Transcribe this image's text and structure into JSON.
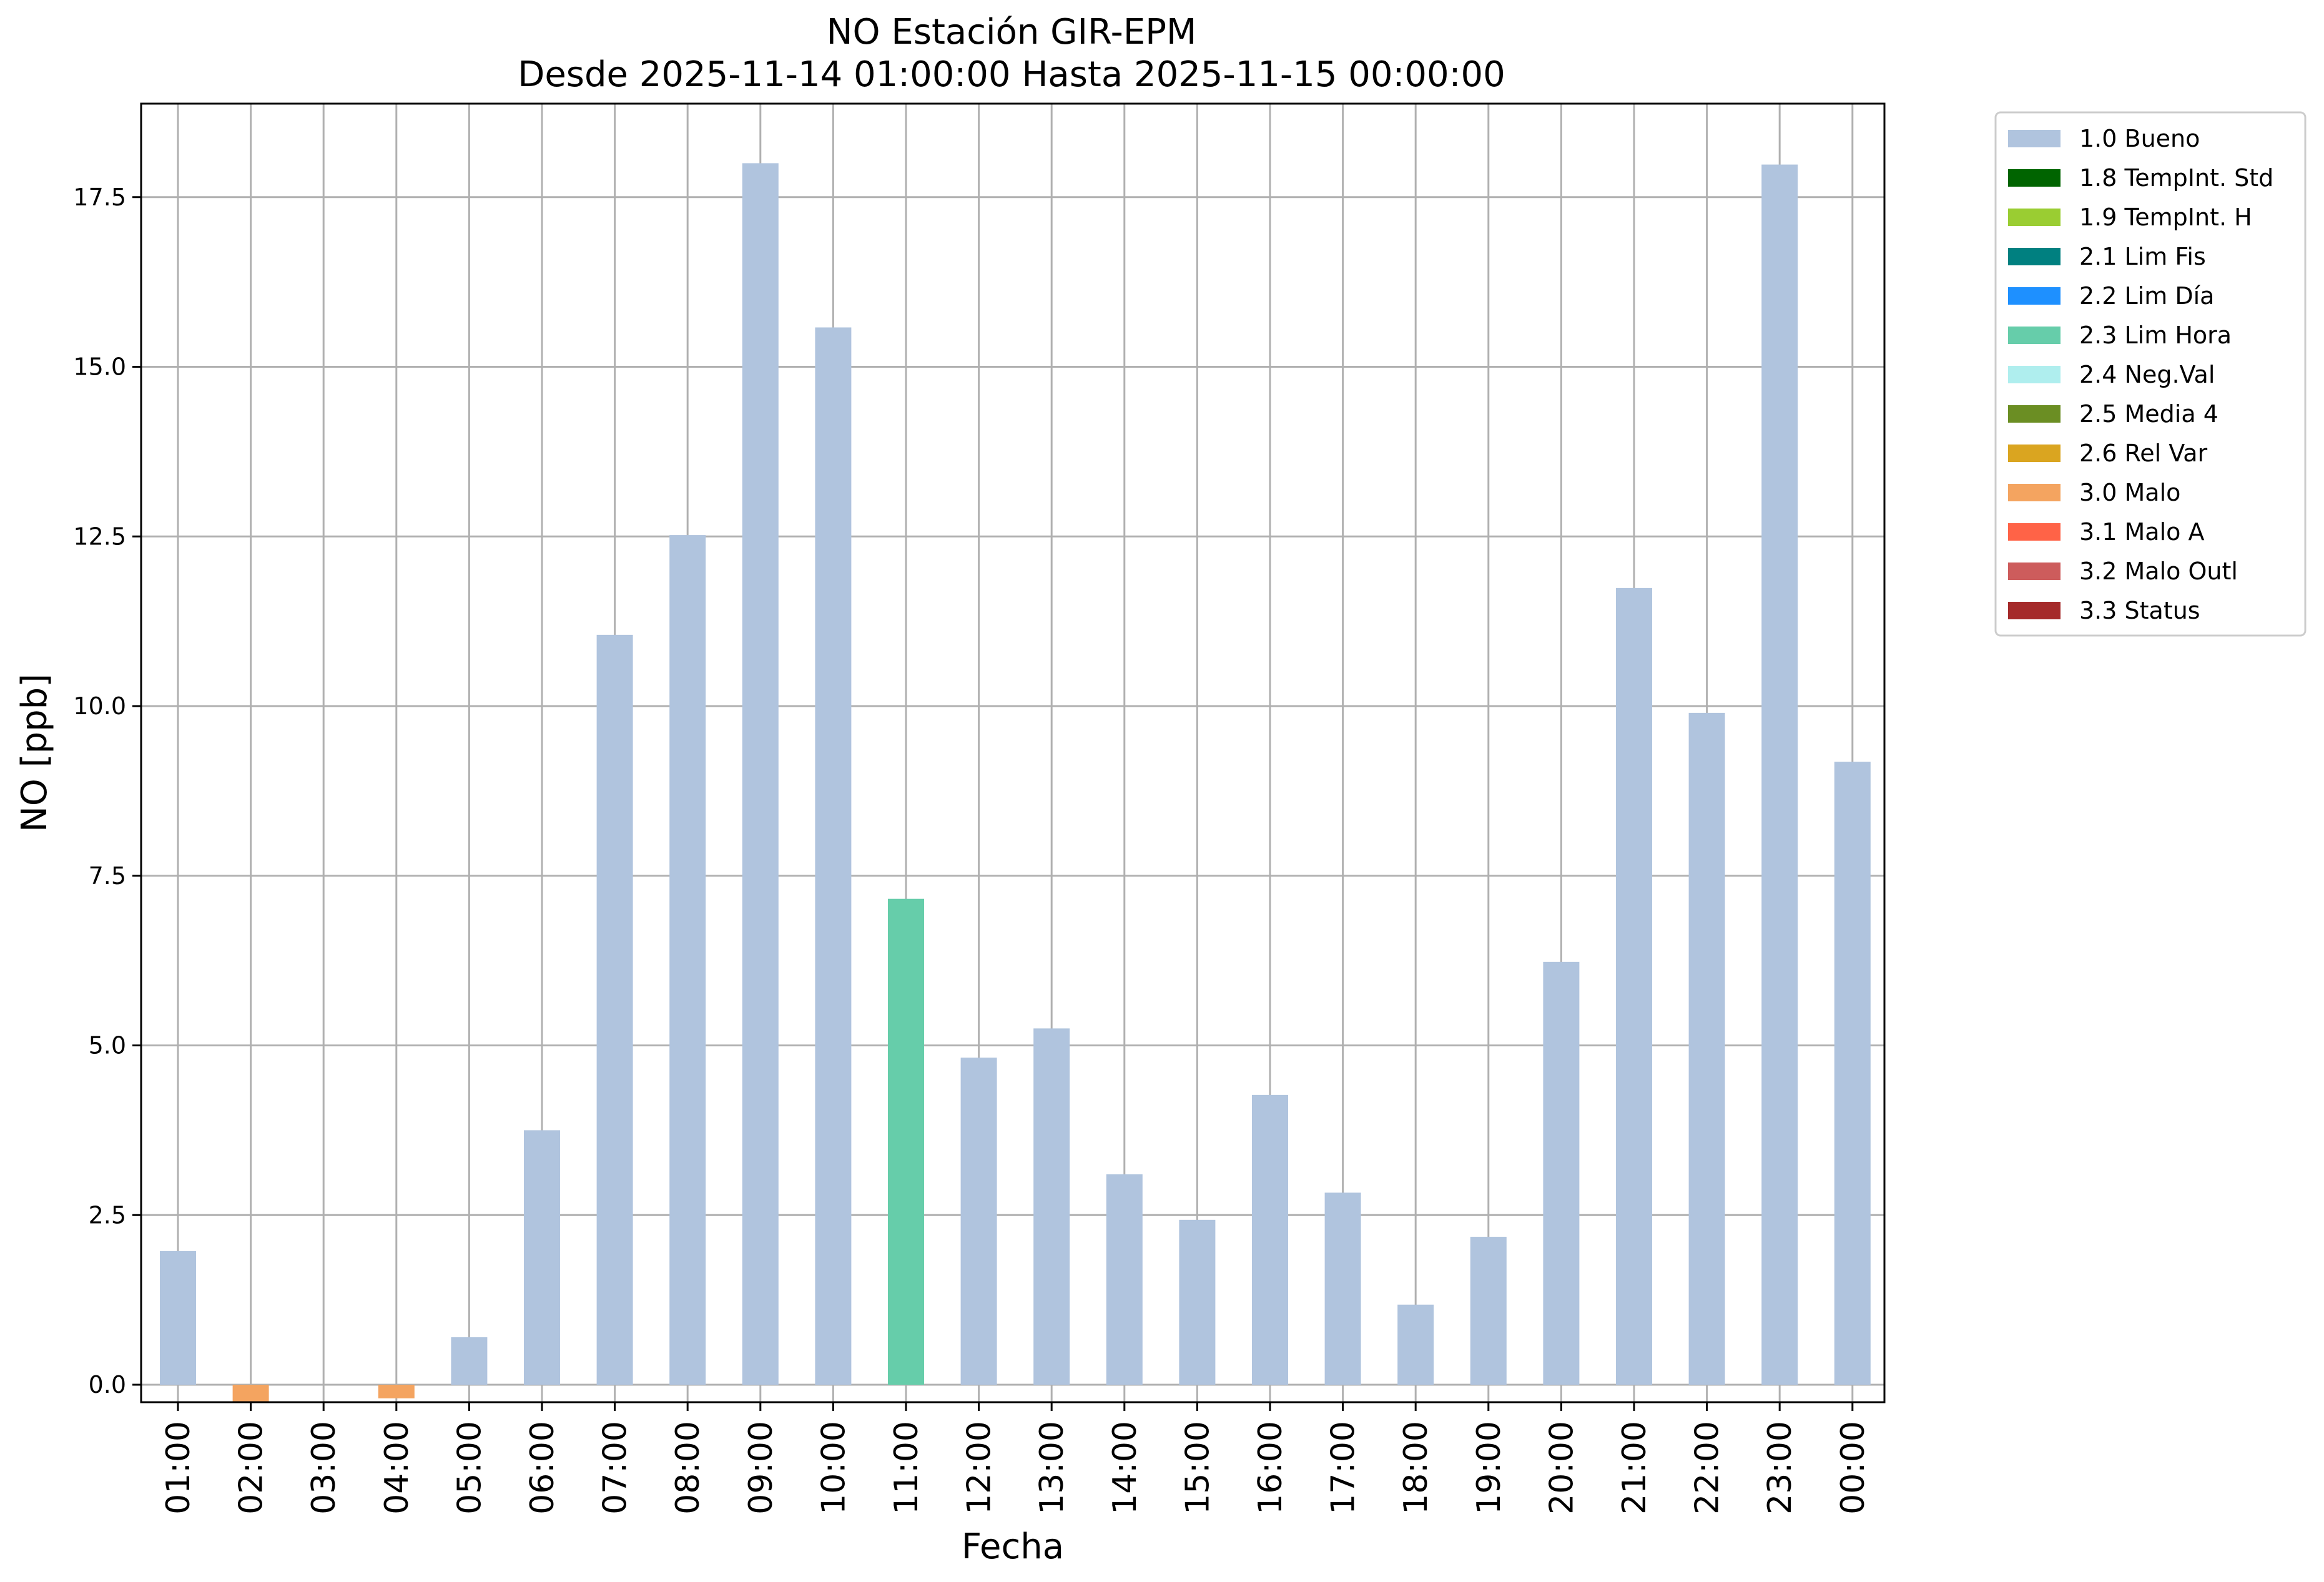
{
  "chart_data": {
    "type": "bar",
    "title": "NO Estación GIR-EPM",
    "subtitle": "Desde 2025-11-14 01:00:00 Hasta 2025-11-15 00:00:00",
    "xlabel": "Fecha",
    "ylabel": "NO [ppb]",
    "ylim": [
      -0.25,
      18.9
    ],
    "yticks": [
      "0.0",
      "2.5",
      "5.0",
      "7.5",
      "10.0",
      "12.5",
      "15.0",
      "17.5"
    ],
    "grid": true,
    "legend_position": "outside right, top",
    "categories": [
      "01:00",
      "02:00",
      "03:00",
      "04:00",
      "05:00",
      "06:00",
      "07:00",
      "08:00",
      "09:00",
      "10:00",
      "11:00",
      "12:00",
      "13:00",
      "14:00",
      "15:00",
      "16:00",
      "17:00",
      "18:00",
      "19:00",
      "20:00",
      "21:00",
      "22:00",
      "23:00",
      "00:00"
    ],
    "values": [
      1.97,
      -0.26,
      null,
      -0.2,
      0.7,
      3.75,
      11.05,
      12.52,
      18.0,
      15.58,
      7.16,
      4.82,
      5.25,
      3.1,
      2.43,
      4.27,
      2.83,
      1.18,
      2.18,
      6.23,
      11.74,
      9.9,
      17.98,
      9.18
    ],
    "flags": [
      "1.0 Bueno",
      "3.0 Malo",
      null,
      "3.0 Malo",
      "1.0 Bueno",
      "1.0 Bueno",
      "1.0 Bueno",
      "1.0 Bueno",
      "1.0 Bueno",
      "1.0 Bueno",
      "2.3 Lim Hora",
      "1.0 Bueno",
      "1.0 Bueno",
      "1.0 Bueno",
      "1.0 Bueno",
      "1.0 Bueno",
      "1.0 Bueno",
      "1.0 Bueno",
      "1.0 Bueno",
      "1.0 Bueno",
      "1.0 Bueno",
      "1.0 Bueno",
      "1.0 Bueno",
      "1.0 Bueno"
    ],
    "legend": [
      {
        "label": "1.0 Bueno",
        "color": "#b0c4de"
      },
      {
        "label": "1.8 TempInt. Std",
        "color": "#006400"
      },
      {
        "label": "1.9 TempInt. H",
        "color": "#9acd32"
      },
      {
        "label": "2.1 Lim Fis",
        "color": "#008080"
      },
      {
        "label": "2.2 Lim Día",
        "color": "#1e90ff"
      },
      {
        "label": "2.3 Lim Hora",
        "color": "#66cdaa"
      },
      {
        "label": "2.4 Neg.Val",
        "color": "#afeeee"
      },
      {
        "label": "2.5 Media 4",
        "color": "#6b8e23"
      },
      {
        "label": "2.6 Rel Var",
        "color": "#daa520"
      },
      {
        "label": "3.0 Malo",
        "color": "#f4a460"
      },
      {
        "label": "3.1 Malo A",
        "color": "#ff6347"
      },
      {
        "label": "3.2 Malo Outl",
        "color": "#cd5c5c"
      },
      {
        "label": "3.3 Status",
        "color": "#a52a2a"
      }
    ]
  }
}
